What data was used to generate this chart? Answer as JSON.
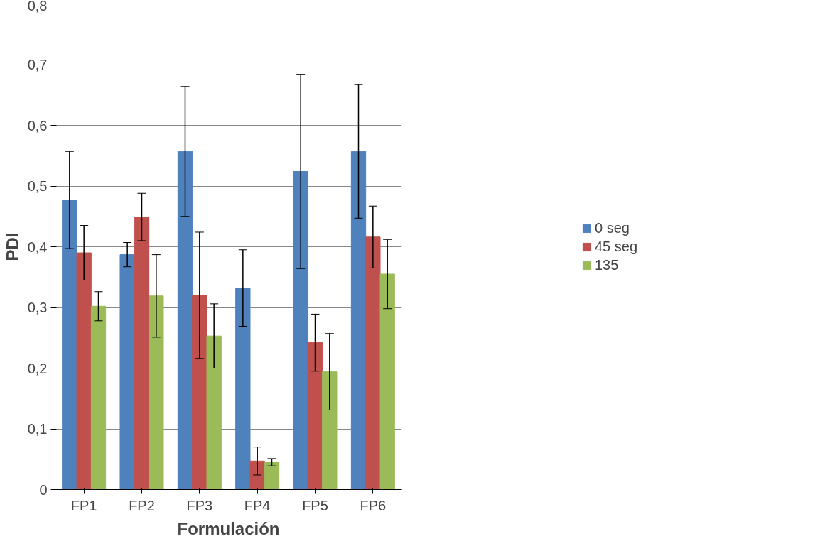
{
  "chart_data": {
    "type": "bar",
    "xlabel": "Formulación",
    "ylabel": "PDI",
    "categories": [
      "FP1",
      "FP2",
      "FP3",
      "FP4",
      "FP5",
      "FP6"
    ],
    "series": [
      {
        "name": "0 seg",
        "color": "#4f81bd",
        "values": [
          0.477,
          0.387,
          0.557,
          0.332,
          0.524,
          0.557
        ],
        "errors": [
          0.08,
          0.02,
          0.107,
          0.063,
          0.16,
          0.11
        ]
      },
      {
        "name": "45 seg",
        "color": "#c0504d",
        "values": [
          0.39,
          0.449,
          0.32,
          0.047,
          0.242,
          0.416
        ],
        "errors": [
          0.045,
          0.039,
          0.104,
          0.023,
          0.047,
          0.051
        ]
      },
      {
        "name": "135",
        "color": "#9bbb59",
        "values": [
          0.302,
          0.319,
          0.253,
          0.045,
          0.194,
          0.355
        ],
        "errors": [
          0.024,
          0.068,
          0.053,
          0.006,
          0.063,
          0.057
        ]
      }
    ],
    "ylim": [
      0,
      0.8
    ],
    "yticks": [
      {
        "value": 0,
        "label": "0"
      },
      {
        "value": 0.1,
        "label": "0,1"
      },
      {
        "value": 0.2,
        "label": "0,2"
      },
      {
        "value": 0.3,
        "label": "0,3"
      },
      {
        "value": 0.4,
        "label": "0,4"
      },
      {
        "value": 0.5,
        "label": "0,5"
      },
      {
        "value": 0.6,
        "label": "0,6"
      },
      {
        "value": 0.7,
        "label": "0,7"
      },
      {
        "value": 0.8,
        "label": "0,8"
      }
    ],
    "grid": "y",
    "legend": "right"
  }
}
